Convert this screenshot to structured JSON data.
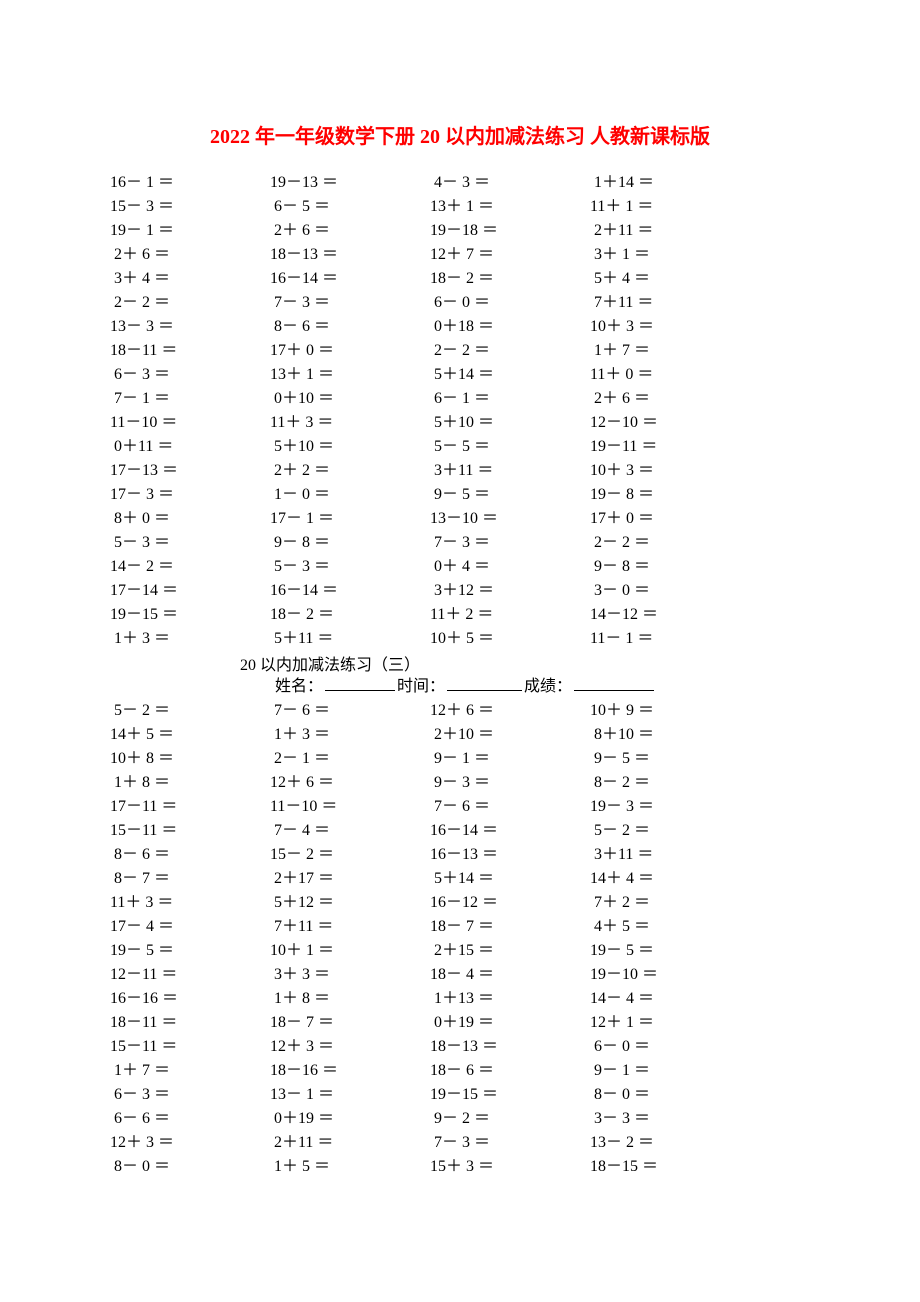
{
  "title_color": "#ff0000",
  "title": "2022 年一年级数学下册 20 以内加减法练习 人教新课标版",
  "subtitle": "20 以内加减法练习（三）",
  "info": {
    "name": "姓名：",
    "time": "时间：",
    "score": "成绩："
  },
  "fs": {
    "title": 20,
    "body": 16
  },
  "s1": {
    "rows": 20,
    "cols": 4,
    "data": [
      [
        [
          16,
          "－",
          1
        ],
        [
          19,
          "－",
          13
        ],
        [
          4,
          "－",
          3
        ],
        [
          1,
          "＋",
          14
        ]
      ],
      [
        [
          15,
          "－",
          3
        ],
        [
          6,
          "－",
          5
        ],
        [
          13,
          "＋",
          1
        ],
        [
          11,
          "＋",
          1
        ]
      ],
      [
        [
          19,
          "－",
          1
        ],
        [
          2,
          "＋",
          6
        ],
        [
          19,
          "－",
          18
        ],
        [
          2,
          "＋",
          11
        ]
      ],
      [
        [
          2,
          "＋",
          6
        ],
        [
          18,
          "－",
          13
        ],
        [
          12,
          "＋",
          7
        ],
        [
          3,
          "＋",
          1
        ]
      ],
      [
        [
          3,
          "＋",
          4
        ],
        [
          16,
          "－",
          14
        ],
        [
          18,
          "－",
          2
        ],
        [
          5,
          "＋",
          4
        ]
      ],
      [
        [
          2,
          "－",
          2
        ],
        [
          7,
          "－",
          3
        ],
        [
          6,
          "－",
          0
        ],
        [
          7,
          "＋",
          11
        ]
      ],
      [
        [
          13,
          "－",
          3
        ],
        [
          8,
          "－",
          6
        ],
        [
          0,
          "＋",
          18
        ],
        [
          10,
          "＋",
          3
        ]
      ],
      [
        [
          18,
          "－",
          11
        ],
        [
          17,
          "＋",
          0
        ],
        [
          2,
          "－",
          2
        ],
        [
          1,
          "＋",
          7
        ]
      ],
      [
        [
          6,
          "－",
          3
        ],
        [
          13,
          "＋",
          1
        ],
        [
          5,
          "＋",
          14
        ],
        [
          11,
          "＋",
          0
        ]
      ],
      [
        [
          7,
          "－",
          1
        ],
        [
          0,
          "＋",
          10
        ],
        [
          6,
          "－",
          1
        ],
        [
          2,
          "＋",
          6
        ]
      ],
      [
        [
          11,
          "－",
          10
        ],
        [
          11,
          "＋",
          3
        ],
        [
          5,
          "＋",
          10
        ],
        [
          12,
          "－",
          10
        ]
      ],
      [
        [
          0,
          "＋",
          11
        ],
        [
          5,
          "＋",
          10
        ],
        [
          5,
          "－",
          5
        ],
        [
          19,
          "－",
          11
        ]
      ],
      [
        [
          17,
          "－",
          13
        ],
        [
          2,
          "＋",
          2
        ],
        [
          3,
          "＋",
          11
        ],
        [
          10,
          "＋",
          3
        ]
      ],
      [
        [
          17,
          "－",
          3
        ],
        [
          1,
          "－",
          0
        ],
        [
          9,
          "－",
          5
        ],
        [
          19,
          "－",
          8
        ]
      ],
      [
        [
          8,
          "＋",
          0
        ],
        [
          17,
          "－",
          1
        ],
        [
          13,
          "－",
          10
        ],
        [
          17,
          "＋",
          0
        ]
      ],
      [
        [
          5,
          "－",
          3
        ],
        [
          9,
          "－",
          8
        ],
        [
          7,
          "－",
          3
        ],
        [
          2,
          "－",
          2
        ]
      ],
      [
        [
          14,
          "－",
          2
        ],
        [
          5,
          "－",
          3
        ],
        [
          0,
          "＋",
          4
        ],
        [
          9,
          "－",
          8
        ]
      ],
      [
        [
          17,
          "－",
          14
        ],
        [
          16,
          "－",
          14
        ],
        [
          3,
          "＋",
          12
        ],
        [
          3,
          "－",
          0
        ]
      ],
      [
        [
          19,
          "－",
          15
        ],
        [
          18,
          "－",
          2
        ],
        [
          11,
          "＋",
          2
        ],
        [
          14,
          "－",
          12
        ]
      ],
      [
        [
          1,
          "＋",
          3
        ],
        [
          5,
          "＋",
          11
        ],
        [
          10,
          "＋",
          5
        ],
        [
          11,
          "－",
          1
        ]
      ]
    ]
  },
  "s2": {
    "rows": 20,
    "cols": 4,
    "data": [
      [
        [
          5,
          "－",
          2
        ],
        [
          7,
          "－",
          6
        ],
        [
          12,
          "＋",
          6
        ],
        [
          10,
          "＋",
          9
        ]
      ],
      [
        [
          14,
          "＋",
          5
        ],
        [
          1,
          "＋",
          3
        ],
        [
          2,
          "＋",
          10
        ],
        [
          8,
          "＋",
          10
        ]
      ],
      [
        [
          10,
          "＋",
          8
        ],
        [
          2,
          "－",
          1
        ],
        [
          9,
          "－",
          1
        ],
        [
          9,
          "－",
          5
        ]
      ],
      [
        [
          1,
          "＋",
          8
        ],
        [
          12,
          "＋",
          6
        ],
        [
          9,
          "－",
          3
        ],
        [
          8,
          "－",
          2
        ]
      ],
      [
        [
          17,
          "－",
          11
        ],
        [
          11,
          "－",
          10
        ],
        [
          7,
          "－",
          6
        ],
        [
          19,
          "－",
          3
        ]
      ],
      [
        [
          15,
          "－",
          11
        ],
        [
          7,
          "－",
          4
        ],
        [
          16,
          "－",
          14
        ],
        [
          5,
          "－",
          2
        ]
      ],
      [
        [
          8,
          "－",
          6
        ],
        [
          15,
          "－",
          2
        ],
        [
          16,
          "－",
          13
        ],
        [
          3,
          "＋",
          11
        ]
      ],
      [
        [
          8,
          "－",
          7
        ],
        [
          2,
          "＋",
          17
        ],
        [
          5,
          "＋",
          14
        ],
        [
          14,
          "＋",
          4
        ]
      ],
      [
        [
          11,
          "＋",
          3
        ],
        [
          5,
          "＋",
          12
        ],
        [
          16,
          "－",
          12
        ],
        [
          7,
          "＋",
          2
        ]
      ],
      [
        [
          17,
          "－",
          4
        ],
        [
          7,
          "＋",
          11
        ],
        [
          18,
          "－",
          7
        ],
        [
          4,
          "＋",
          5
        ]
      ],
      [
        [
          19,
          "－",
          5
        ],
        [
          10,
          "＋",
          1
        ],
        [
          2,
          "＋",
          15
        ],
        [
          19,
          "－",
          5
        ]
      ],
      [
        [
          12,
          "－",
          11
        ],
        [
          3,
          "＋",
          3
        ],
        [
          18,
          "－",
          4
        ],
        [
          19,
          "－",
          10
        ]
      ],
      [
        [
          16,
          "－",
          16
        ],
        [
          1,
          "＋",
          8
        ],
        [
          1,
          "＋",
          13
        ],
        [
          14,
          "－",
          4
        ]
      ],
      [
        [
          18,
          "－",
          11
        ],
        [
          18,
          "－",
          7
        ],
        [
          0,
          "＋",
          19
        ],
        [
          12,
          "＋",
          1
        ]
      ],
      [
        [
          15,
          "－",
          11
        ],
        [
          12,
          "＋",
          3
        ],
        [
          18,
          "－",
          13
        ],
        [
          6,
          "－",
          0
        ]
      ],
      [
        [
          1,
          "＋",
          7
        ],
        [
          18,
          "－",
          16
        ],
        [
          18,
          "－",
          6
        ],
        [
          9,
          "－",
          1
        ]
      ],
      [
        [
          6,
          "－",
          3
        ],
        [
          13,
          "－",
          1
        ],
        [
          19,
          "－",
          15
        ],
        [
          8,
          "－",
          0
        ]
      ],
      [
        [
          6,
          "－",
          6
        ],
        [
          0,
          "＋",
          19
        ],
        [
          9,
          "－",
          2
        ],
        [
          3,
          "－",
          3
        ]
      ],
      [
        [
          12,
          "＋",
          3
        ],
        [
          2,
          "＋",
          11
        ],
        [
          7,
          "－",
          3
        ],
        [
          13,
          "－",
          2
        ]
      ],
      [
        [
          8,
          "－",
          0
        ],
        [
          1,
          "＋",
          5
        ],
        [
          15,
          "＋",
          3
        ],
        [
          18,
          "－",
          15
        ]
      ]
    ]
  }
}
